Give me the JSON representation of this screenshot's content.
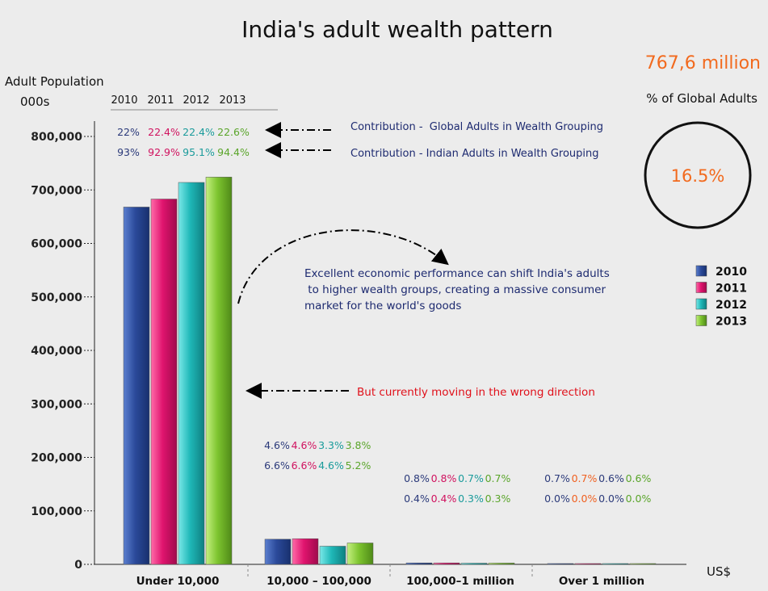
{
  "chart_data": {
    "type": "bar",
    "title": "India's adult wealth pattern",
    "ylabel_line1": "Adult Population",
    "ylabel_line2": "000s",
    "xlabel": "US$",
    "ylim": [
      0,
      800000
    ],
    "yticks": [
      "0",
      "100,000",
      "200,000",
      "300,000",
      "400,000",
      "500,000",
      "600,000",
      "700,000",
      "800,000"
    ],
    "categories": [
      "Under 10,000",
      "10,000 – 100,000",
      "100,000–1 million",
      "Over 1 million"
    ],
    "series": [
      {
        "name": "2010",
        "color": "#2b4a9a",
        "values": [
          668000,
          47000,
          2700,
          300
        ]
      },
      {
        "name": "2011",
        "color": "#e0146e",
        "values": [
          683000,
          48000,
          2700,
          300
        ]
      },
      {
        "name": "2012",
        "color": "#1fb8b8",
        "values": [
          714000,
          34000,
          2200,
          300
        ]
      },
      {
        "name": "2013",
        "color": "#7dc42f",
        "values": [
          724000,
          40000,
          2400,
          300
        ]
      }
    ],
    "header_years": [
      "2010",
      "2011",
      "2012",
      "2013"
    ],
    "top_pct_global": [
      "22%",
      "22.4%",
      "22.4%",
      "22.6%"
    ],
    "top_pct_indian": [
      "93%",
      "92.9%",
      "95.1%",
      "94.4%"
    ],
    "group_pct": [
      {
        "row1": [
          "4.6%",
          "4.6%",
          "3.3%",
          "3.8%"
        ],
        "row2": [
          "6.6%",
          "6.6%",
          "4.6%",
          "5.2%"
        ]
      },
      {
        "row1": [
          "0.8%",
          "0.8%",
          "0.7%",
          "0.7%"
        ],
        "row2": [
          "0.4%",
          "0.4%",
          "0.3%",
          "0.3%"
        ]
      },
      {
        "row1": [
          "0.7%",
          "0.7%",
          "0.6%",
          "0.6%"
        ],
        "row2": [
          "0.0%",
          "0.0%",
          "0.0%",
          "0.0%"
        ]
      }
    ],
    "group_pct_colors": [
      "#2b3a7a",
      "#d0125f",
      "#1a9b9b",
      "#5aa52a"
    ],
    "group_pct_colors_last": [
      "#2b3a7a",
      "#f06020",
      "#2b3a7a",
      "#5aa52a"
    ],
    "annotations": {
      "contrib_global": "Contribution -  Global Adults in Wealth Grouping",
      "contrib_indian": "Contribution - Indian Adults in Wealth Grouping",
      "economic_line1": "Excellent economic performance can shift India's adults",
      "economic_line2": " to higher wealth groups, creating a massive consumer",
      "economic_line3": "market for the world's goods",
      "wrong_direction": "But currently moving in the wrong direction"
    },
    "total_adults": "767,6 million",
    "global_adults_label": "% of Global Adults",
    "global_adults_pct": "16.5%",
    "legend_position": "right"
  }
}
